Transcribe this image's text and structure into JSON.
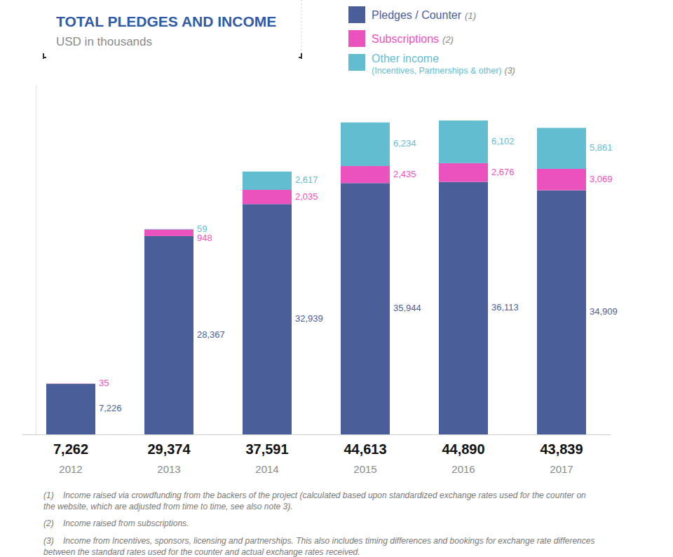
{
  "chart_data": {
    "type": "bar",
    "stacked": true,
    "data_labels": true,
    "tick_labels": "x",
    "legend": "top-right",
    "grid": false,
    "title": "TOTAL PLEDGES AND INCOME",
    "subtitle": "USD in thousands",
    "categories": [
      "2012",
      "2013",
      "2014",
      "2015",
      "2016",
      "2017"
    ],
    "totals": [
      "7,262",
      "29,374",
      "37,591",
      "44,613",
      "44,890",
      "43,839"
    ],
    "ylim": [
      0,
      50000
    ],
    "yticks": [],
    "series": [
      {
        "name": "Pledges / Counter",
        "note": "(1)",
        "color": "#4a5e9a",
        "values": [
          7226,
          28367,
          32939,
          35944,
          36113,
          34909
        ],
        "value_labels": [
          "7,226",
          "28,367",
          "32,939",
          "35,944",
          "36,113",
          "34,909"
        ]
      },
      {
        "name": "Subscriptions",
        "note": "(2)",
        "color": "#ec52bd",
        "values": [
          35,
          948,
          2035,
          2435,
          2676,
          3069
        ],
        "value_labels": [
          "35",
          "948",
          "2,035",
          "2,435",
          "2,676",
          "3,069"
        ]
      },
      {
        "name": "Other income",
        "detail": "(Incentives, Partnerships & other)",
        "note": "(3)",
        "color": "#62bdd1",
        "values": [
          null,
          59,
          2617,
          6234,
          6102,
          5861
        ],
        "value_labels": [
          null,
          "59",
          "2,617",
          "6,234",
          "6,102",
          "5,861"
        ]
      }
    ],
    "footnotes": [
      {
        "marker": "(1)",
        "text": "Income raised via crowdfunding from the backers of the project (calculated based upon standardized exchange rates used for the counter on the website, which are adjusted from time to time, see also note 3)."
      },
      {
        "marker": "(2)",
        "text": "Income raised from subscriptions."
      },
      {
        "marker": "(3)",
        "text": "Income from Incentives, sponsors, licensing and partnerships. This also includes timing differences and bookings for exchange rate differences between the standard rates used for the counter and actual exchange rates received."
      }
    ]
  }
}
